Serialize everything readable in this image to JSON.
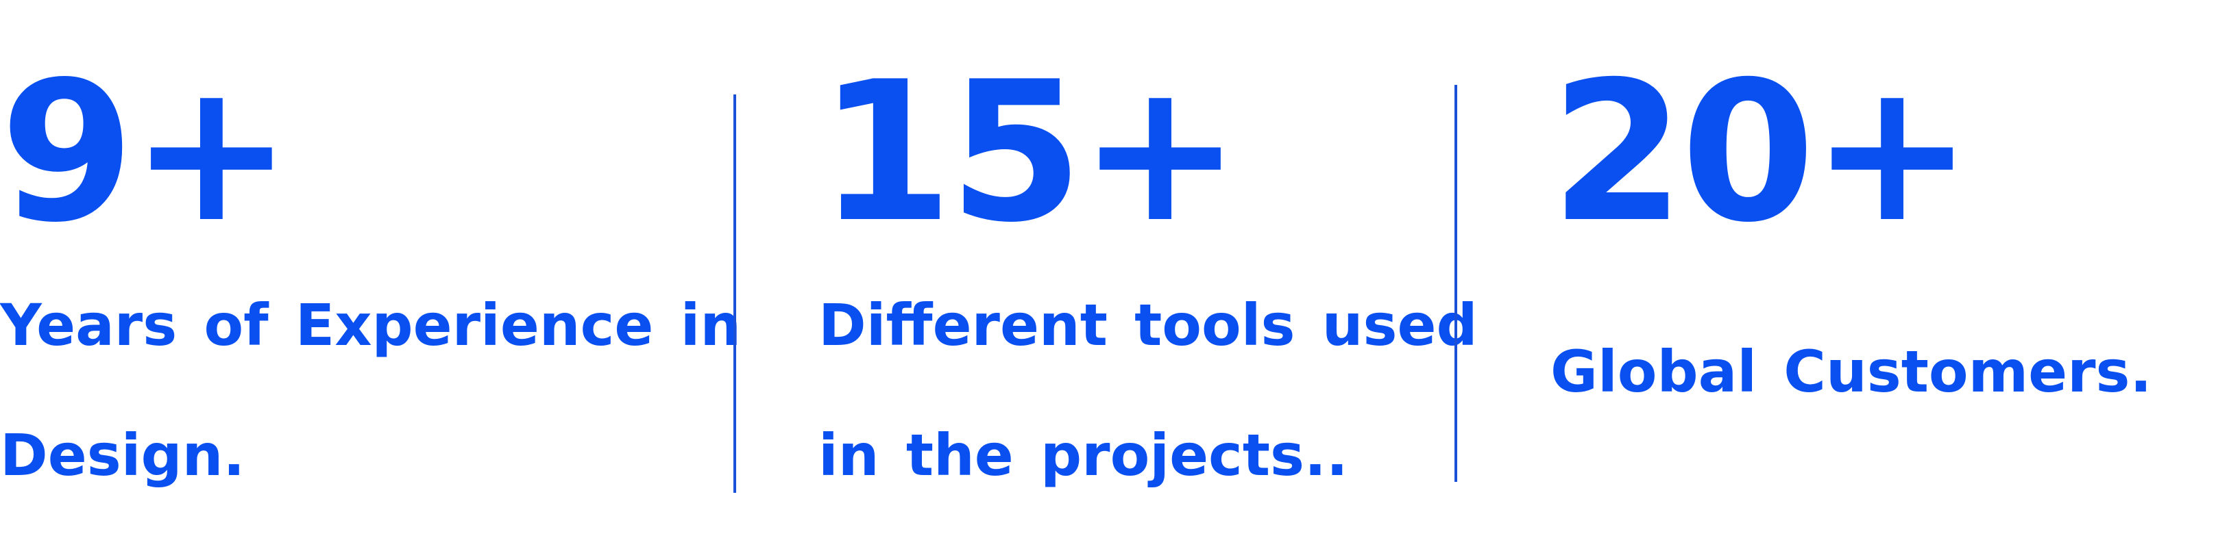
{
  "stats": [
    {
      "value": "9+",
      "label_line1": "Years of Experience in",
      "label_line2": "Design."
    },
    {
      "value": "15+",
      "label_line1": "Different tools used",
      "label_line2": "in the projects.."
    },
    {
      "value": "20+",
      "label_line1": "Global Customers.",
      "label_line2": ""
    }
  ],
  "colors": {
    "accent": "#0a4ff0",
    "divider": "#1a4fd8",
    "background": "#ffffff"
  }
}
